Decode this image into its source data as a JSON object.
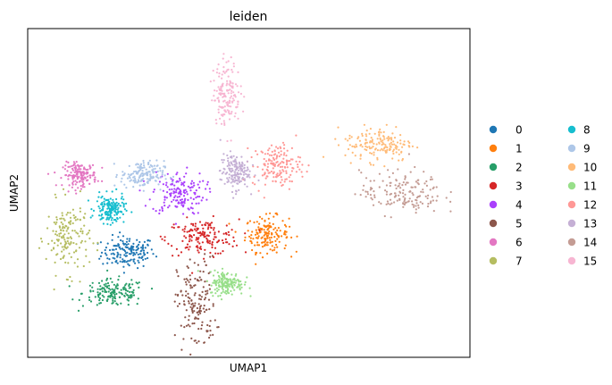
{
  "chart_data": {
    "type": "scatter",
    "title": "leiden",
    "xlabel": "UMAP1",
    "ylabel": "UMAP2",
    "xticks": false,
    "yticks": false,
    "grid": false,
    "legend_position": "right, outside plot, 2 columns",
    "series": [
      {
        "name": "0",
        "color": "#1f77b4",
        "center": [
          -0.5,
          -0.3
        ],
        "spread": [
          0.55,
          0.4
        ]
      },
      {
        "name": "1",
        "color": "#ff7f0e",
        "center": [
          2.95,
          0.25
        ],
        "spread": [
          0.45,
          0.45
        ]
      },
      {
        "name": "2",
        "color": "#279e68",
        "center": [
          -0.85,
          -1.55
        ],
        "spread": [
          0.65,
          0.35
        ]
      },
      {
        "name": "3",
        "color": "#d62728",
        "center": [
          1.35,
          0.15
        ],
        "spread": [
          0.75,
          0.45
        ]
      },
      {
        "name": "4",
        "color": "#aa40fc",
        "center": [
          0.75,
          1.5
        ],
        "spread": [
          0.55,
          0.55
        ]
      },
      {
        "name": "5",
        "color": "#8c564b",
        "center": [
          1.2,
          -1.9
        ],
        "spread": [
          0.4,
          1.2
        ]
      },
      {
        "name": "6",
        "color": "#e377c2",
        "center": [
          -1.7,
          2.05
        ],
        "spread": [
          0.35,
          0.3
        ]
      },
      {
        "name": "7",
        "color": "#b5bd61",
        "center": [
          -2.0,
          0.15
        ],
        "spread": [
          0.45,
          0.9
        ]
      },
      {
        "name": "8",
        "color": "#17becf",
        "center": [
          -0.95,
          1.0
        ],
        "spread": [
          0.3,
          0.35
        ]
      },
      {
        "name": "9",
        "color": "#aec7e8",
        "center": [
          -0.15,
          2.05
        ],
        "spread": [
          0.45,
          0.35
        ]
      },
      {
        "name": "10",
        "color": "#ffbb78",
        "center": [
          5.75,
          3.0
        ],
        "spread": [
          0.7,
          0.45
        ]
      },
      {
        "name": "11",
        "color": "#98df8a",
        "center": [
          1.95,
          -1.25
        ],
        "spread": [
          0.35,
          0.3
        ]
      },
      {
        "name": "12",
        "color": "#ff9896",
        "center": [
          3.2,
          2.35
        ],
        "spread": [
          0.5,
          0.55
        ]
      },
      {
        "name": "13",
        "color": "#c5b0d5",
        "center": [
          2.15,
          2.15
        ],
        "spread": [
          0.3,
          0.45
        ]
      },
      {
        "name": "14",
        "color": "#c49c94",
        "center": [
          6.3,
          1.5
        ],
        "spread": [
          0.85,
          0.55
        ]
      },
      {
        "name": "15",
        "color": "#f7b6d2",
        "center": [
          1.95,
          4.55
        ],
        "spread": [
          0.28,
          0.8
        ]
      }
    ],
    "xlim": [
      -3.0,
      8.0
    ],
    "ylim": [
      -3.5,
      6.5
    ]
  }
}
